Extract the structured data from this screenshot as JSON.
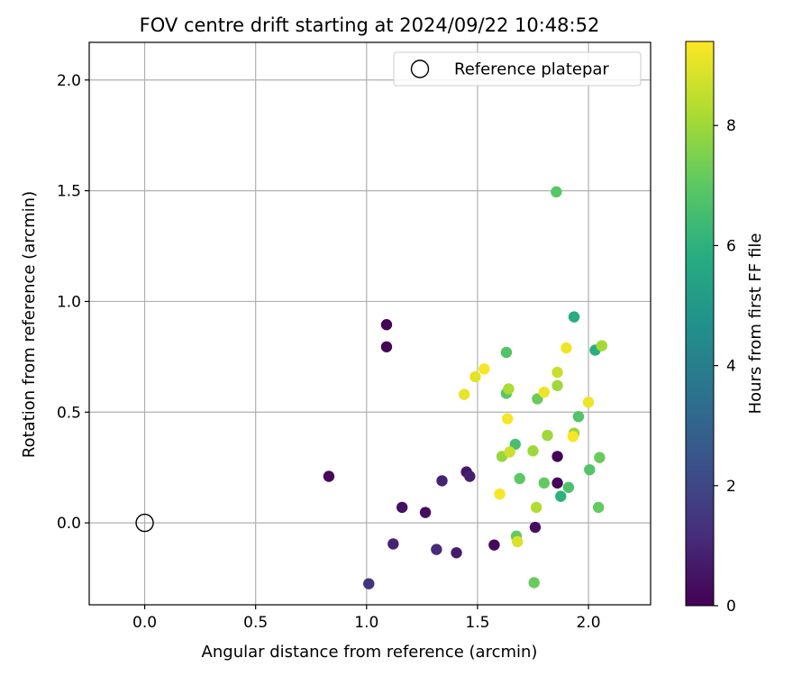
{
  "chart_data": {
    "type": "scatter",
    "title": "FOV centre drift starting at 2024/09/22 10:48:52",
    "xlabel": "Angular distance from reference (arcmin)",
    "ylabel": "Rotation from reference (arcmin)",
    "xlim": [
      -0.25,
      2.28
    ],
    "ylim": [
      -0.37,
      2.17
    ],
    "xticks": [
      0.0,
      0.5,
      1.0,
      1.5,
      2.0
    ],
    "xtick_labels": [
      "0.0",
      "0.5",
      "1.0",
      "1.5",
      "2.0"
    ],
    "yticks": [
      0.0,
      0.5,
      1.0,
      1.5,
      2.0
    ],
    "ytick_labels": [
      "0.0",
      "0.5",
      "1.0",
      "1.5",
      "2.0"
    ],
    "grid": true,
    "legend": {
      "position": "top-right",
      "entries": [
        "Reference platepar"
      ]
    },
    "reference_point": {
      "x": 0.0,
      "y": 0.0,
      "label": "Reference platepar"
    },
    "colorbar": {
      "label": "Hours from first FF file",
      "min": 0,
      "max": 9.4,
      "ticks": [
        0,
        2,
        4,
        6,
        8
      ],
      "tick_labels": [
        "0",
        "2",
        "4",
        "6",
        "8"
      ],
      "colormap": "viridis"
    },
    "points": [
      {
        "x": 1.09,
        "y": 0.895,
        "hours": 0.1
      },
      {
        "x": 1.09,
        "y": 0.795,
        "hours": 0.1
      },
      {
        "x": 0.83,
        "y": 0.21,
        "hours": 0.2
      },
      {
        "x": 1.16,
        "y": 0.07,
        "hours": 0.4
      },
      {
        "x": 1.265,
        "y": 0.047,
        "hours": 0.3
      },
      {
        "x": 1.12,
        "y": -0.095,
        "hours": 0.9
      },
      {
        "x": 1.01,
        "y": -0.275,
        "hours": 1.4
      },
      {
        "x": 1.315,
        "y": -0.12,
        "hours": 1.1
      },
      {
        "x": 1.34,
        "y": 0.19,
        "hours": 0.9
      },
      {
        "x": 1.405,
        "y": -0.135,
        "hours": 0.7
      },
      {
        "x": 1.45,
        "y": 0.23,
        "hours": 0.6
      },
      {
        "x": 1.465,
        "y": 0.21,
        "hours": 0.8
      },
      {
        "x": 1.575,
        "y": -0.1,
        "hours": 0.2
      },
      {
        "x": 1.76,
        "y": -0.02,
        "hours": 0.4
      },
      {
        "x": 1.86,
        "y": 0.3,
        "hours": 0.1
      },
      {
        "x": 1.86,
        "y": 0.18,
        "hours": 0.2
      },
      {
        "x": 1.855,
        "y": 1.495,
        "hours": 6.9
      },
      {
        "x": 1.935,
        "y": 0.93,
        "hours": 5.8
      },
      {
        "x": 2.03,
        "y": 0.78,
        "hours": 5.9
      },
      {
        "x": 2.06,
        "y": 0.8,
        "hours": 8.1
      },
      {
        "x": 1.63,
        "y": 0.77,
        "hours": 6.8
      },
      {
        "x": 1.44,
        "y": 0.58,
        "hours": 9.1
      },
      {
        "x": 1.49,
        "y": 0.66,
        "hours": 9.0
      },
      {
        "x": 1.53,
        "y": 0.695,
        "hours": 9.3
      },
      {
        "x": 1.63,
        "y": 0.585,
        "hours": 6.9
      },
      {
        "x": 1.64,
        "y": 0.605,
        "hours": 8.2
      },
      {
        "x": 1.77,
        "y": 0.56,
        "hours": 7.2
      },
      {
        "x": 1.8,
        "y": 0.59,
        "hours": 9.2
      },
      {
        "x": 1.86,
        "y": 0.68,
        "hours": 8.6
      },
      {
        "x": 1.86,
        "y": 0.62,
        "hours": 8.0
      },
      {
        "x": 1.9,
        "y": 0.79,
        "hours": 9.2
      },
      {
        "x": 1.635,
        "y": 0.47,
        "hours": 9.3
      },
      {
        "x": 2.0,
        "y": 0.545,
        "hours": 9.2
      },
      {
        "x": 1.955,
        "y": 0.48,
        "hours": 6.8
      },
      {
        "x": 1.67,
        "y": 0.355,
        "hours": 6.6
      },
      {
        "x": 1.815,
        "y": 0.395,
        "hours": 8.0
      },
      {
        "x": 1.935,
        "y": 0.405,
        "hours": 7.9
      },
      {
        "x": 1.93,
        "y": 0.39,
        "hours": 9.3
      },
      {
        "x": 1.61,
        "y": 0.3,
        "hours": 7.9
      },
      {
        "x": 1.645,
        "y": 0.32,
        "hours": 8.7
      },
      {
        "x": 1.75,
        "y": 0.325,
        "hours": 8.0
      },
      {
        "x": 1.69,
        "y": 0.2,
        "hours": 7.0
      },
      {
        "x": 1.8,
        "y": 0.18,
        "hours": 7.1
      },
      {
        "x": 1.875,
        "y": 0.12,
        "hours": 6.0
      },
      {
        "x": 1.91,
        "y": 0.16,
        "hours": 6.7
      },
      {
        "x": 2.005,
        "y": 0.24,
        "hours": 6.8
      },
      {
        "x": 2.05,
        "y": 0.295,
        "hours": 7.2
      },
      {
        "x": 2.045,
        "y": 0.07,
        "hours": 7.1
      },
      {
        "x": 1.6,
        "y": 0.13,
        "hours": 9.3
      },
      {
        "x": 1.765,
        "y": 0.07,
        "hours": 8.3
      },
      {
        "x": 1.675,
        "y": -0.06,
        "hours": 7.1
      },
      {
        "x": 1.68,
        "y": -0.085,
        "hours": 8.9
      },
      {
        "x": 1.755,
        "y": -0.27,
        "hours": 7.2
      }
    ]
  }
}
